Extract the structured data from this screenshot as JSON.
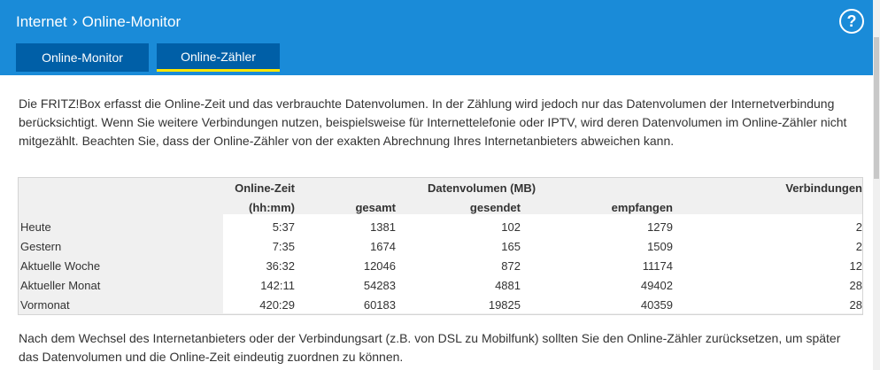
{
  "breadcrumb": {
    "parent": "Internet",
    "current": "Online-Monitor"
  },
  "help_label": "?",
  "tabs": [
    {
      "label": "Online-Monitor",
      "active": false
    },
    {
      "label": "Online-Zähler",
      "active": true
    }
  ],
  "intro": "Die FRITZ!Box erfasst die Online-Zeit und das verbrauchte Datenvolumen. In der Zählung wird jedoch nur das Datenvolumen der Internetverbindung berücksichtigt. Wenn Sie weitere Verbindungen nutzen, beispielsweise für Internettelefonie oder IPTV, wird deren Datenvolumen im Online-Zähler nicht mitgezählt. Beachten Sie, dass der Online-Zähler von der exakten Abrechnung Ihres Internetanbieters abweichen kann.",
  "table": {
    "headers": {
      "online_zeit": "Online-Zeit",
      "online_zeit_unit": "(hh:mm)",
      "datenvolumen": "Datenvolumen (MB)",
      "gesamt": "gesamt",
      "gesendet": "gesendet",
      "empfangen": "empfangen",
      "verbindungen": "Verbindungen"
    },
    "rows": [
      {
        "label": "Heute",
        "zeit": "5:37",
        "gesamt": "1381",
        "gesendet": "102",
        "empfangen": "1279",
        "verbindungen": "2"
      },
      {
        "label": "Gestern",
        "zeit": "7:35",
        "gesamt": "1674",
        "gesendet": "165",
        "empfangen": "1509",
        "verbindungen": "2"
      },
      {
        "label": "Aktuelle Woche",
        "zeit": "36:32",
        "gesamt": "12046",
        "gesendet": "872",
        "empfangen": "11174",
        "verbindungen": "12"
      },
      {
        "label": "Aktueller Monat",
        "zeit": "142:11",
        "gesamt": "54283",
        "gesendet": "4881",
        "empfangen": "49402",
        "verbindungen": "28"
      },
      {
        "label": "Vormonat",
        "zeit": "420:29",
        "gesamt": "60183",
        "gesendet": "19825",
        "empfangen": "40359",
        "verbindungen": "28"
      }
    ]
  },
  "footer": "Nach dem Wechsel des Internetanbieters oder der Verbindungsart (z.B. von DSL zu Mobilfunk) sollten Sie den Online-Zähler zurücksetzen, um später das Datenvolumen und die Online-Zeit eindeutig zuordnen zu können.",
  "colors": {
    "header": "#1a8bd8",
    "tab": "#005fa7",
    "tab_active_underline": "#ffe600"
  }
}
